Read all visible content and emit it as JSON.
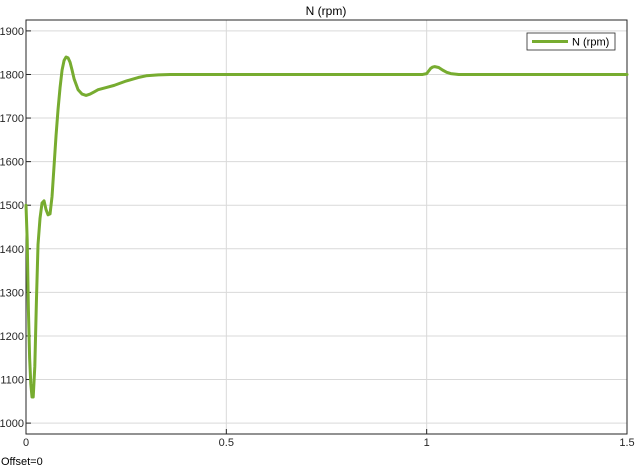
{
  "scope": {
    "offset_label": "Offset=0"
  },
  "chart_data": {
    "type": "line",
    "title": "N (rpm)",
    "xlabel": "",
    "ylabel": "",
    "xlim": [
      0,
      1.5
    ],
    "ylim": [
      975,
      1925
    ],
    "x_ticks": [
      0,
      0.5,
      1,
      1.5
    ],
    "x_tick_labels": [
      "0",
      "0.5",
      "1",
      "1.5"
    ],
    "y_ticks": [
      1000,
      1100,
      1200,
      1300,
      1400,
      1500,
      1600,
      1700,
      1800,
      1900
    ],
    "y_tick_labels": [
      "1000",
      "1100",
      "1200",
      "1300",
      "1400",
      "1500",
      "1600",
      "1700",
      "1800",
      "1900"
    ],
    "grid": true,
    "legend": "top-right",
    "series": [
      {
        "name": "N (rpm)",
        "color": "#77ac30",
        "x": [
          0,
          0.003,
          0.006,
          0.009,
          0.012,
          0.015,
          0.018,
          0.022,
          0.026,
          0.03,
          0.035,
          0.04,
          0.045,
          0.05,
          0.055,
          0.06,
          0.065,
          0.07,
          0.075,
          0.08,
          0.085,
          0.09,
          0.095,
          0.1,
          0.105,
          0.11,
          0.115,
          0.12,
          0.13,
          0.14,
          0.15,
          0.16,
          0.17,
          0.18,
          0.2,
          0.22,
          0.25,
          0.28,
          0.3,
          0.33,
          0.36,
          0.4,
          0.45,
          0.5,
          0.6,
          0.7,
          0.8,
          0.9,
          0.99,
          1.0,
          1.005,
          1.01,
          1.015,
          1.02,
          1.03,
          1.04,
          1.05,
          1.06,
          1.08,
          1.1,
          1.15,
          1.2,
          1.3,
          1.4,
          1.5
        ],
        "y": [
          1500,
          1420,
          1260,
          1150,
          1090,
          1060,
          1060,
          1130,
          1280,
          1410,
          1470,
          1505,
          1510,
          1490,
          1478,
          1480,
          1520,
          1590,
          1660,
          1720,
          1770,
          1810,
          1832,
          1840,
          1838,
          1828,
          1810,
          1790,
          1765,
          1755,
          1752,
          1755,
          1760,
          1765,
          1770,
          1775,
          1785,
          1793,
          1797,
          1799,
          1800,
          1800,
          1800,
          1800,
          1800,
          1800,
          1800,
          1800,
          1800,
          1802,
          1808,
          1814,
          1817,
          1818,
          1816,
          1810,
          1805,
          1802,
          1800,
          1800,
          1800,
          1800,
          1800,
          1800,
          1800
        ]
      }
    ]
  }
}
